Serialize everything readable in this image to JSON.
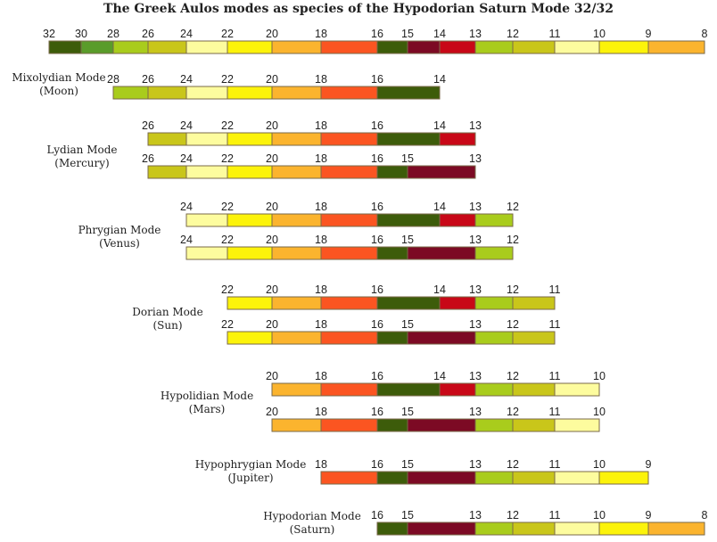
{
  "title": "The Greek Aulos modes as species of the Hypodorian Saturn Mode 32/32",
  "colors": {
    "32": "#3d5c0a",
    "30": "#5a9c2a",
    "28": "#a9cc1c",
    "26": "#c9c61a",
    "24": "#fdfc9e",
    "22": "#fcf30a",
    "20": "#fbb42e",
    "18": "#fb5521",
    "16": "#3d5c0a",
    "15": "#7c0a24",
    "14": "#c80817",
    "13": "#a9cc1c",
    "12": "#c9c61a",
    "11": "#fdfc9e",
    "10": "#fcf30a",
    "9": "#fbb42e",
    "8": "#fb5521"
  },
  "top_scale": [
    "32",
    "30",
    "28",
    "26",
    "24",
    "22",
    "20",
    "18",
    "16",
    "15",
    "14",
    "13",
    "12",
    "11",
    "10",
    "9",
    "8"
  ],
  "modes": [
    {
      "name": "Mixolydian Mode",
      "planet": "(Moon)",
      "rows": [
        [
          "28",
          "26",
          "24",
          "22",
          "20",
          "18",
          "16",
          "14"
        ]
      ]
    },
    {
      "name": "Lydian Mode",
      "planet": "(Mercury)",
      "rows": [
        [
          "26",
          "24",
          "22",
          "20",
          "18",
          "16",
          "14",
          "13"
        ],
        [
          "26",
          "24",
          "22",
          "20",
          "18",
          "16",
          "15",
          "13"
        ]
      ]
    },
    {
      "name": "Phrygian Mode",
      "planet": "(Venus)",
      "rows": [
        [
          "24",
          "22",
          "20",
          "18",
          "16",
          "14",
          "13",
          "12"
        ],
        [
          "24",
          "22",
          "20",
          "18",
          "16",
          "15",
          "13",
          "12"
        ]
      ]
    },
    {
      "name": "Dorian Mode",
      "planet": "(Sun)",
      "rows": [
        [
          "22",
          "20",
          "18",
          "16",
          "14",
          "13",
          "12",
          "11"
        ],
        [
          "22",
          "20",
          "18",
          "16",
          "15",
          "13",
          "12",
          "11"
        ]
      ]
    },
    {
      "name": "Hypolidian Mode",
      "planet": "(Mars)",
      "rows": [
        [
          "20",
          "18",
          "16",
          "14",
          "13",
          "12",
          "11",
          "10"
        ],
        [
          "20",
          "18",
          "16",
          "15",
          "13",
          "12",
          "11",
          "10"
        ]
      ]
    },
    {
      "name": "Hypophrygian Mode",
      "planet": "(Jupiter)",
      "rows": [
        [
          "18",
          "16",
          "15",
          "13",
          "12",
          "11",
          "10",
          "9"
        ]
      ]
    },
    {
      "name": "Hypodorian Mode",
      "planet": "(Saturn)",
      "rows": [
        [
          "16",
          "15",
          "13",
          "12",
          "11",
          "10",
          "9",
          "8"
        ]
      ]
    }
  ]
}
